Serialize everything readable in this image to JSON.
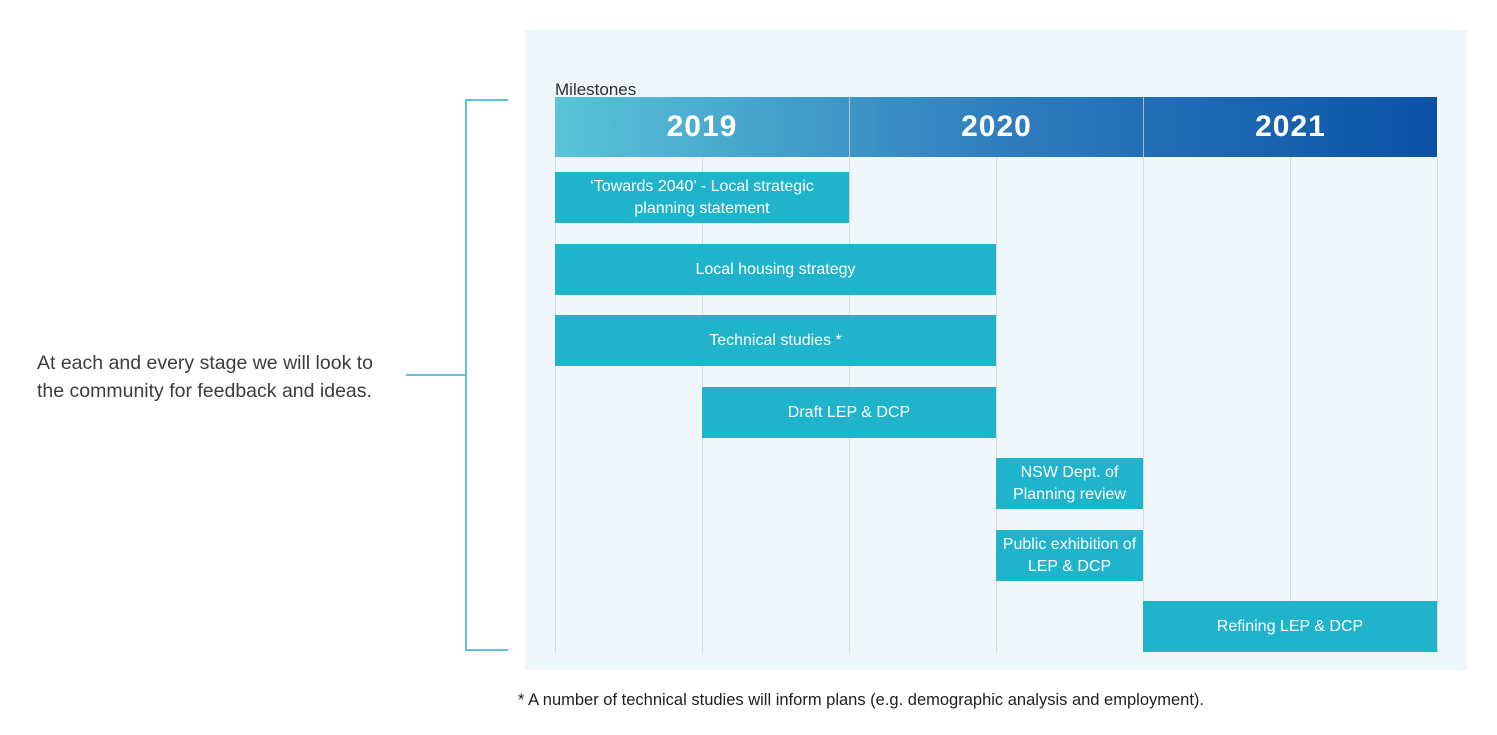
{
  "panel": {
    "title": "Milestones"
  },
  "annotation": {
    "line1": "At each and every stage we will look to",
    "line2": "the community for feedback and ideas."
  },
  "footnote": "* A number of technical studies will inform plans (e.g. demographic analysis and employment).",
  "chart_data": {
    "type": "bar",
    "subtype": "gantt-timeline",
    "title": "Milestones",
    "x_axis": {
      "range": [
        2019,
        2022
      ],
      "tick_labels": [
        "2019",
        "2020",
        "2021"
      ],
      "gridline_interval_years": 0.5,
      "grid": true
    },
    "years": [
      "2019",
      "2020",
      "2021"
    ],
    "tasks": [
      {
        "label": "‘Towards 2040’ - Local strategic planning statement",
        "start": 2019.0,
        "end": 2020.0
      },
      {
        "label": "Local housing strategy",
        "start": 2019.0,
        "end": 2020.5
      },
      {
        "label": "Technical studies *",
        "start": 2019.0,
        "end": 2020.5
      },
      {
        "label": "Draft LEP & DCP",
        "start": 2019.5,
        "end": 2020.5
      },
      {
        "label": "NSW Dept. of Planning review",
        "start": 2020.5,
        "end": 2021.0
      },
      {
        "label": "Public exhibition of LEP & DCP",
        "start": 2020.5,
        "end": 2021.0
      },
      {
        "label": "Refining LEP & DCP",
        "start": 2021.0,
        "end": 2022.0
      }
    ],
    "colors": {
      "bar": "#1fb4cb",
      "bar_text": "#ffffff",
      "header_gradient_start": "#5ac4d8",
      "header_gradient_mid": "#2f7ebe",
      "header_gradient_end": "#0b52a6",
      "panel_background": "#eff7fa",
      "gridline": "#d6dbde",
      "bracket": "#5bc5da",
      "annotation_text": "#3d3d3d"
    }
  }
}
